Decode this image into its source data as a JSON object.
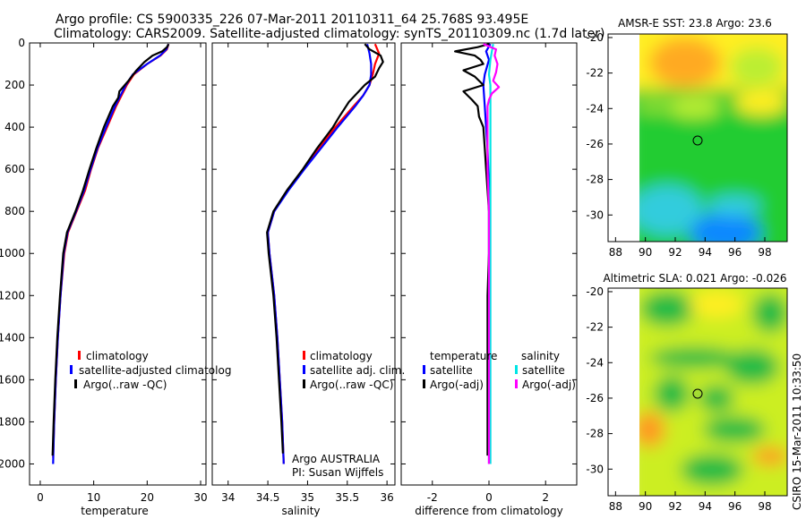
{
  "title": {
    "line1": "Argo profile: CS 5900335_226 07-Mar-2011 20110311_64 25.768S 93.495E",
    "line2": "Climatology: CARS2009. Satellite-adjusted climatology: synTS_20110309.nc (1.7d later)"
  },
  "side_label": "CSIRO 15-Mar-2011 10:33:50",
  "colors": {
    "climatology": "#ff0000",
    "satellite": "#0000ff",
    "argo": "#000000",
    "salinity_satellite": "#00e5e5",
    "salinity_argo": "#ff00ff"
  },
  "chart_data": [
    {
      "type": "line",
      "name": "temperature-profile",
      "xlabel": "temperature",
      "ylabel": "",
      "xlim": [
        -2,
        31
      ],
      "ylim": [
        2100,
        0
      ],
      "xticks": [
        "0",
        "10",
        "20",
        "30"
      ],
      "yticks": [
        "0",
        "200",
        "400",
        "600",
        "800",
        "1000",
        "1200",
        "1400",
        "1600",
        "1800",
        "2000"
      ],
      "legend": [
        "climatology",
        "satellite-adjusted climatolog",
        "Argo(..raw -QC)"
      ],
      "series": [
        {
          "name": "climatology",
          "color": "#ff0000",
          "depth": [
            5,
            30,
            60,
            100,
            150,
            200,
            300,
            400,
            500,
            600,
            700,
            800,
            900,
            1000,
            1200,
            1400,
            1600,
            1800,
            1970
          ],
          "values": [
            24.0,
            23.7,
            22.5,
            20.0,
            17.5,
            16.2,
            14.2,
            12.5,
            10.8,
            9.5,
            8.4,
            6.8,
            5.2,
            4.5,
            3.8,
            3.3,
            2.9,
            2.6,
            2.4
          ]
        },
        {
          "name": "satellite",
          "color": "#0000ff",
          "depth": [
            5,
            30,
            60,
            100,
            150,
            200,
            300,
            400,
            500,
            600,
            700,
            800,
            900,
            1000,
            1200,
            1400,
            1600,
            1800,
            2000
          ],
          "values": [
            24.0,
            23.6,
            22.4,
            20.0,
            17.3,
            16.0,
            14.0,
            12.3,
            10.7,
            9.4,
            8.2,
            6.7,
            5.1,
            4.4,
            3.8,
            3.3,
            2.9,
            2.6,
            2.4
          ]
        },
        {
          "name": "Argo(..raw -QC)",
          "color": "#000000",
          "depth": [
            5,
            20,
            40,
            60,
            90,
            130,
            180,
            230,
            260,
            300,
            400,
            500,
            600,
            700,
            800,
            900,
            1000,
            1200,
            1400,
            1600,
            1800,
            1960
          ],
          "values": [
            24.0,
            23.7,
            22.8,
            21.0,
            19.5,
            18.0,
            16.5,
            14.8,
            14.6,
            13.6,
            11.9,
            10.5,
            9.2,
            8.0,
            6.6,
            5.0,
            4.3,
            3.7,
            3.2,
            2.8,
            2.5,
            2.3
          ]
        }
      ]
    },
    {
      "type": "line",
      "name": "salinity-profile",
      "xlabel": "salinity",
      "ylabel": "",
      "xlim": [
        33.8,
        36.1
      ],
      "ylim": [
        2100,
        0
      ],
      "xticks": [
        "34",
        "34.5",
        "35",
        "35.5",
        "36"
      ],
      "legend": [
        "climatology",
        "satellite adj. clim.",
        "Argo(..raw -QC)"
      ],
      "annotations": [
        "Argo AUSTRALIA",
        "PI: Susan Wijffels"
      ],
      "series": [
        {
          "name": "climatology",
          "color": "#ff0000",
          "depth": [
            5,
            50,
            100,
            150,
            200,
            250,
            300,
            400,
            500,
            600,
            700,
            800,
            900,
            1000,
            1200,
            1400,
            1600,
            1800,
            2000
          ],
          "values": [
            35.85,
            35.9,
            35.85,
            35.82,
            35.78,
            35.7,
            35.58,
            35.35,
            35.15,
            34.95,
            34.75,
            34.58,
            34.5,
            34.52,
            34.58,
            34.62,
            34.65,
            34.68,
            34.7
          ]
        },
        {
          "name": "satellite",
          "color": "#0000ff",
          "depth": [
            5,
            50,
            100,
            150,
            200,
            250,
            300,
            400,
            500,
            600,
            700,
            800,
            900,
            1000,
            1200,
            1400,
            1600,
            1800,
            2000
          ],
          "values": [
            35.75,
            35.78,
            35.8,
            35.8,
            35.78,
            35.7,
            35.6,
            35.38,
            35.17,
            34.96,
            34.76,
            34.58,
            34.5,
            34.52,
            34.58,
            34.62,
            34.65,
            34.68,
            34.7
          ]
        },
        {
          "name": "Argo(..raw -QC)",
          "color": "#000000",
          "depth": [
            5,
            30,
            60,
            90,
            120,
            160,
            200,
            240,
            280,
            350,
            400,
            500,
            600,
            700,
            800,
            900,
            1000,
            1200,
            1400,
            1600,
            1800,
            1950
          ],
          "values": [
            35.72,
            35.78,
            35.92,
            35.95,
            35.9,
            35.85,
            35.72,
            35.62,
            35.52,
            35.4,
            35.32,
            35.12,
            34.94,
            34.74,
            34.57,
            34.49,
            34.51,
            34.57,
            34.61,
            34.64,
            34.67,
            34.69
          ]
        }
      ]
    },
    {
      "type": "line",
      "name": "difference-profile",
      "xlabel": "difference from climatology",
      "ylabel": "",
      "xlim": [
        -3.1,
        3.1
      ],
      "ylim": [
        2100,
        0
      ],
      "xticks": [
        "-2",
        "0",
        "2"
      ],
      "legend_titles": [
        "temperature",
        "salinity"
      ],
      "legend": [
        "satellite",
        "Argo(-adj)",
        "satellite",
        "Argo(-adj)"
      ],
      "series": [
        {
          "name": "temperature satellite",
          "color": "#0000ff",
          "depth": [
            5,
            40,
            80,
            150,
            200,
            300,
            400,
            500,
            700,
            900,
            1200,
            1500,
            1800,
            2000
          ],
          "values": [
            0.05,
            -0.1,
            0.0,
            -0.15,
            -0.2,
            -0.15,
            -0.1,
            -0.05,
            0.0,
            0.0,
            0.0,
            0.0,
            0.0,
            0.0
          ]
        },
        {
          "name": "temperature Argo(-adj)",
          "color": "#000000",
          "depth": [
            5,
            20,
            40,
            60,
            80,
            100,
            130,
            160,
            200,
            230,
            270,
            300,
            350,
            400,
            500,
            600,
            700,
            800,
            900,
            1000,
            1200,
            1400,
            1600,
            1800,
            1960
          ],
          "values": [
            0.0,
            -0.4,
            -1.2,
            -0.5,
            -0.3,
            -0.2,
            -0.9,
            -0.5,
            -0.2,
            -0.9,
            -0.6,
            -0.4,
            -0.35,
            -0.2,
            -0.15,
            -0.1,
            -0.05,
            0.0,
            0.0,
            0.0,
            -0.05,
            -0.05,
            -0.05,
            -0.05,
            -0.05
          ]
        },
        {
          "name": "salinity satellite",
          "color": "#00e5e5",
          "depth": [
            5,
            40,
            80,
            150,
            200,
            300,
            400,
            500,
            700,
            900,
            1200,
            1500,
            1800,
            2000
          ],
          "values": [
            0.15,
            0.1,
            0.05,
            0.0,
            0.05,
            0.05,
            0.05,
            0.05,
            0.05,
            0.05,
            0.05,
            0.05,
            0.05,
            0.05
          ]
        },
        {
          "name": "salinity Argo(-adj)",
          "color": "#ff00ff",
          "depth": [
            5,
            30,
            60,
            100,
            140,
            180,
            210,
            240,
            270,
            300,
            350,
            400,
            500,
            600,
            800,
            1000,
            1200,
            1400,
            1600,
            1800,
            2000
          ],
          "values": [
            -0.2,
            0.25,
            0.2,
            0.3,
            0.25,
            0.15,
            0.35,
            0.1,
            0.0,
            -0.05,
            -0.05,
            -0.05,
            -0.05,
            -0.05,
            0.0,
            0.0,
            0.0,
            0.0,
            0.0,
            0.0,
            0.0
          ]
        }
      ]
    },
    {
      "type": "heatmap",
      "name": "sst-map",
      "title": "AMSR-E SST: 23.8 Argo: 23.6",
      "xlim": [
        87.5,
        99.5
      ],
      "ylim": [
        -31.5,
        -19.8
      ],
      "xticks": [
        "88",
        "90",
        "92",
        "94",
        "96",
        "98"
      ],
      "yticks": [
        "-20",
        "-22",
        "-24",
        "-26",
        "-28",
        "-30"
      ],
      "marker": {
        "lon": 93.5,
        "lat": -25.77
      }
    },
    {
      "type": "heatmap",
      "name": "sla-map",
      "title": "Altimetric SLA: 0.021 Argo: -0.026",
      "xlim": [
        87.5,
        99.5
      ],
      "ylim": [
        -31.5,
        -19.8
      ],
      "xticks": [
        "88",
        "90",
        "92",
        "94",
        "96",
        "98"
      ],
      "yticks": [
        "-20",
        "-22",
        "-24",
        "-26",
        "-28",
        "-30"
      ],
      "marker": {
        "lon": 93.5,
        "lat": -25.77
      }
    }
  ]
}
